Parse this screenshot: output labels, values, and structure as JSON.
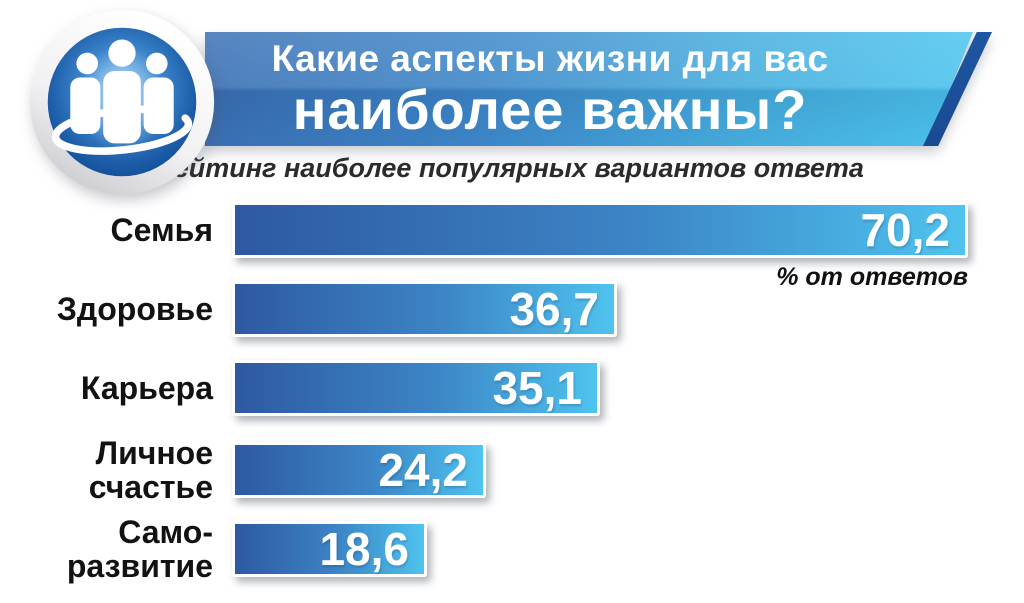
{
  "header": {
    "title_line1": "Какие аспекты жизни для вас",
    "title_line2": "наиболее важны?",
    "subtitle": "Рейтинг наиболее популярных вариантов ответа"
  },
  "unit_label": "% от ответов",
  "icon": {
    "name": "people-group-icon"
  },
  "colors": {
    "banner_gradient_start": "#3a70b4",
    "banner_gradient_end": "#4cc5ef",
    "banner_accent_stripe": "#1c4e99",
    "bar_gradient_start": "#2e59a2",
    "bar_gradient_end": "#4fc3ee",
    "icon_blue_dark": "#14549e",
    "icon_blue_light": "#7cc4f4",
    "label_text": "#121212",
    "value_text": "#ffffff",
    "subtitle_text": "#2b2b2b"
  },
  "chart_data": {
    "type": "bar",
    "orientation": "horizontal",
    "title": "Какие аспекты жизни для вас наиболее важны?",
    "subtitle": "Рейтинг наиболее популярных вариантов ответа",
    "unit": "% от ответов",
    "categories": [
      "Семья",
      "Здоровье",
      "Карьера",
      "Личное счастье",
      "Само-развитие"
    ],
    "category_label_lines": [
      [
        "Семья"
      ],
      [
        "Здоровье"
      ],
      [
        "Карьера"
      ],
      [
        "Личное",
        "счастье"
      ],
      [
        "Само-",
        "развитие"
      ]
    ],
    "values": [
      70.2,
      36.7,
      35.1,
      24.2,
      18.6
    ],
    "value_labels": [
      "70,2",
      "36,7",
      "35,1",
      "24,2",
      "18,6"
    ],
    "xlim": [
      0,
      70.2
    ],
    "grid": false,
    "legend": false
  }
}
